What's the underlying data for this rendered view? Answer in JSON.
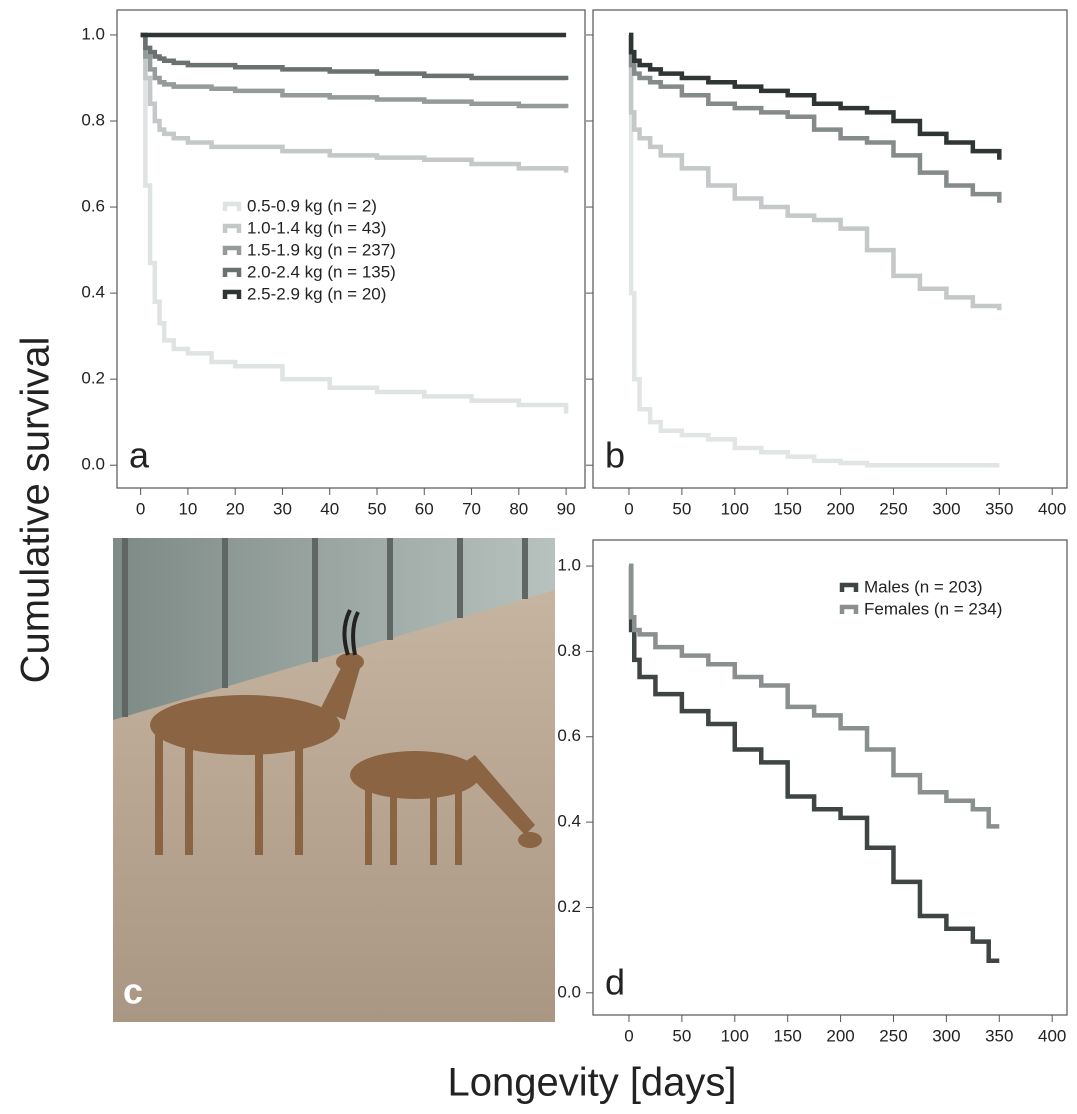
{
  "y_label": "Cumulative survival",
  "x_label": "Longevity [days]",
  "chart_data": [
    {
      "type": "line",
      "step": true,
      "panel_label": "a",
      "x": [
        0,
        1,
        2,
        3,
        4,
        5,
        7,
        10,
        15,
        20,
        30,
        40,
        50,
        60,
        70,
        80,
        90
      ],
      "xlim": [
        -5,
        94
      ],
      "xticks": [
        0,
        10,
        20,
        30,
        40,
        50,
        60,
        70,
        80,
        90
      ],
      "ylim": [
        -0.053,
        1.058
      ],
      "yticks": [
        {
          "value": 0,
          "label": "0.0"
        },
        0.2,
        0.4,
        0.6,
        0.8,
        {
          "value": 1,
          "label": "1.0"
        }
      ],
      "ytick_labels": true,
      "legend_position": "center",
      "series": [
        {
          "name": "0.5-0.9 kg (n = 2)",
          "color": "#e0e3e3",
          "values": [
            1.0,
            0.65,
            0.47,
            0.38,
            0.33,
            0.29,
            0.27,
            0.26,
            0.24,
            0.23,
            0.2,
            0.18,
            0.17,
            0.16,
            0.15,
            0.14,
            0.12
          ]
        },
        {
          "name": "1.0-1.4 kg (n = 43)",
          "color": "#c4c8c8",
          "values": [
            1.0,
            0.9,
            0.84,
            0.8,
            0.78,
            0.77,
            0.76,
            0.75,
            0.74,
            0.74,
            0.73,
            0.72,
            0.715,
            0.71,
            0.7,
            0.69,
            0.68
          ]
        },
        {
          "name": "1.5-1.9 kg (n = 237)",
          "color": "#959a9a",
          "values": [
            1.0,
            0.95,
            0.92,
            0.9,
            0.89,
            0.885,
            0.88,
            0.88,
            0.875,
            0.87,
            0.86,
            0.855,
            0.85,
            0.845,
            0.84,
            0.835,
            0.83
          ]
        },
        {
          "name": "2.0-2.4 kg (n = 135)",
          "color": "#6b7070",
          "values": [
            1.0,
            0.97,
            0.96,
            0.95,
            0.945,
            0.94,
            0.935,
            0.93,
            0.93,
            0.925,
            0.92,
            0.915,
            0.91,
            0.905,
            0.9,
            0.9,
            0.895
          ]
        },
        {
          "name": "2.5-2.9 kg (n = 20)",
          "color": "#2f3434",
          "values": [
            1,
            1,
            1,
            1,
            1,
            1,
            1,
            1,
            1,
            1,
            1,
            1,
            1,
            1,
            1,
            1,
            1
          ]
        }
      ]
    },
    {
      "type": "line",
      "step": true,
      "panel_label": "b",
      "x": [
        0,
        2,
        5,
        10,
        20,
        30,
        50,
        75,
        100,
        125,
        150,
        175,
        200,
        225,
        250,
        275,
        300,
        325,
        350
      ],
      "xlim": [
        -34,
        414
      ],
      "xticks": [
        0,
        50,
        100,
        150,
        200,
        250,
        300,
        350,
        400
      ],
      "ylim": [
        -0.053,
        1.058
      ],
      "yticks": [
        0,
        0.2,
        0.4,
        0.6,
        0.8,
        1
      ],
      "ytick_labels": false,
      "series": [
        {
          "color": "#e2e5e5",
          "values": [
            1.0,
            0.4,
            0.2,
            0.13,
            0.1,
            0.08,
            0.07,
            0.06,
            0.04,
            0.03,
            0.02,
            0.01,
            0.005,
            0,
            0,
            0,
            0,
            0,
            0
          ]
        },
        {
          "color": "#c4c8c8",
          "values": [
            1.0,
            0.82,
            0.78,
            0.76,
            0.74,
            0.72,
            0.69,
            0.65,
            0.62,
            0.6,
            0.58,
            0.57,
            0.55,
            0.5,
            0.44,
            0.41,
            0.39,
            0.37,
            0.36
          ]
        },
        {
          "color": "#858a8a",
          "values": [
            1.0,
            0.93,
            0.91,
            0.9,
            0.89,
            0.88,
            0.86,
            0.84,
            0.83,
            0.82,
            0.81,
            0.78,
            0.76,
            0.75,
            0.72,
            0.68,
            0.65,
            0.63,
            0.61
          ]
        },
        {
          "color": "#2f3434",
          "values": [
            1.0,
            0.96,
            0.94,
            0.93,
            0.92,
            0.91,
            0.9,
            0.89,
            0.88,
            0.87,
            0.86,
            0.84,
            0.83,
            0.82,
            0.8,
            0.77,
            0.75,
            0.73,
            0.71
          ]
        }
      ]
    },
    {
      "type": "image",
      "panel_label": "c"
    },
    {
      "type": "line",
      "step": true,
      "panel_label": "d",
      "x": [
        0,
        2,
        5,
        10,
        25,
        50,
        75,
        100,
        125,
        150,
        175,
        200,
        225,
        250,
        275,
        300,
        325,
        340,
        350
      ],
      "xlim": [
        -34,
        414
      ],
      "xticks": [
        0,
        50,
        100,
        150,
        200,
        250,
        300,
        350,
        400
      ],
      "ylim": [
        -0.052,
        1.061
      ],
      "yticks": [
        {
          "value": 0,
          "label": "0.0"
        },
        0.2,
        0.4,
        0.6,
        0.8,
        {
          "value": 1,
          "label": "1.0"
        }
      ],
      "ytick_labels": true,
      "legend_position": "top-right",
      "series": [
        {
          "name": "Males (n = 203)",
          "color": "#3f4444",
          "values": [
            1.0,
            0.85,
            0.78,
            0.74,
            0.7,
            0.66,
            0.63,
            0.57,
            0.54,
            0.46,
            0.43,
            0.41,
            0.34,
            0.26,
            0.18,
            0.15,
            0.12,
            0.075,
            0.075
          ]
        },
        {
          "name": "Females (n = 234)",
          "color": "#8a8f8f",
          "values": [
            1.0,
            0.88,
            0.85,
            0.84,
            0.81,
            0.79,
            0.77,
            0.74,
            0.72,
            0.67,
            0.65,
            0.62,
            0.57,
            0.51,
            0.47,
            0.45,
            0.43,
            0.39,
            0.39
          ]
        }
      ]
    }
  ]
}
